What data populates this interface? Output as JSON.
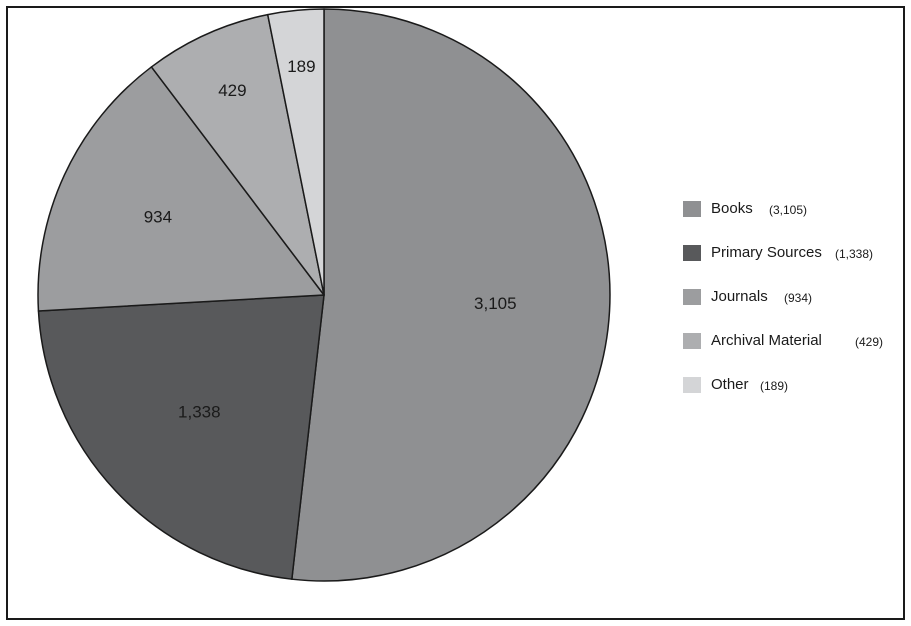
{
  "chart_data": {
    "type": "pie",
    "slices": [
      {
        "name": "Books",
        "value": 3105,
        "label": "3,105",
        "legend_count": "(3,105)",
        "color": "#8f9092"
      },
      {
        "name": "Primary Sources",
        "value": 1338,
        "label": "1,338",
        "legend_count": "(1,338)",
        "color": "#58595b"
      },
      {
        "name": "Journals",
        "value": 934,
        "label": "934",
        "legend_count": "(934)",
        "color": "#9c9d9f"
      },
      {
        "name": "Archival Material",
        "value": 429,
        "label": "429",
        "legend_count": "(429)",
        "color": "#adaeb0"
      },
      {
        "name": "Other",
        "value": 189,
        "label": "189",
        "legend_count": "(189)",
        "color": "#d4d5d7"
      }
    ],
    "start_angle_deg": 0,
    "direction": "clockwise",
    "legend_position": "right",
    "slice_edge_color": "#1a1a1a"
  }
}
